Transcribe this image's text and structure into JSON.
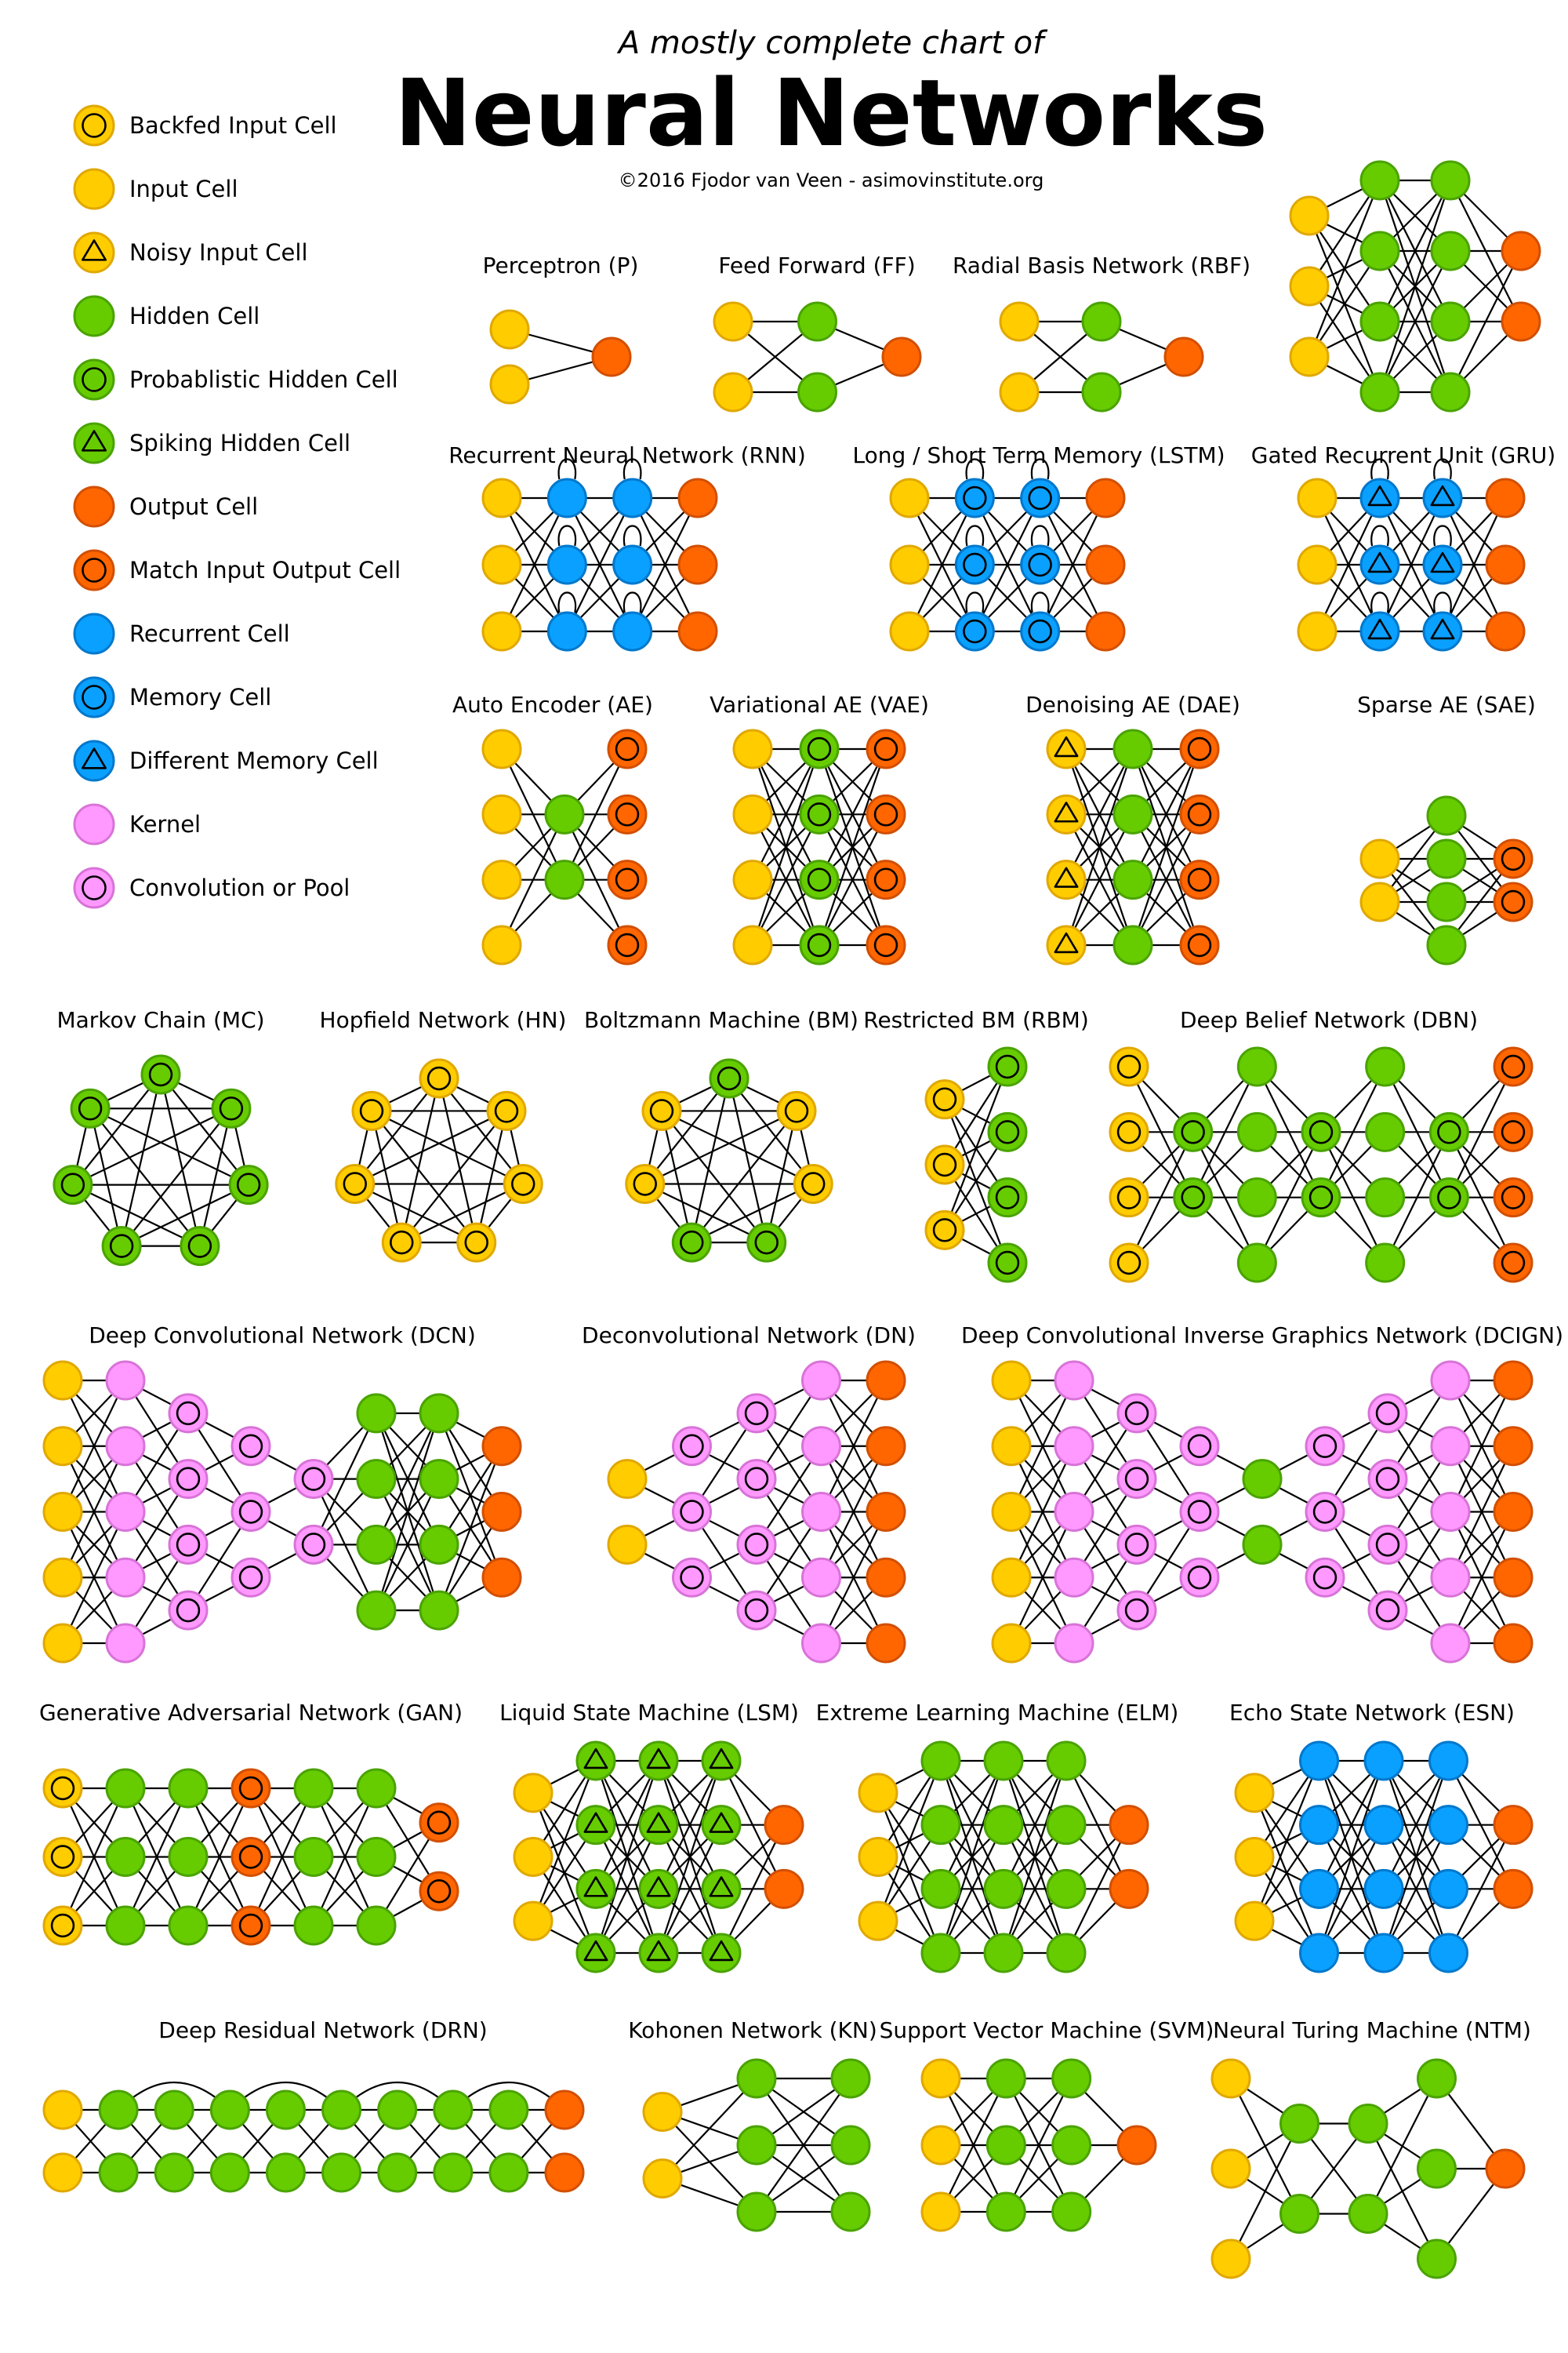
{
  "header": {
    "subtitle": "A mostly complete chart of",
    "title": "Neural Networks",
    "credit": "©2016 Fjodor van Veen - asimovinstitute.org"
  },
  "colors": {
    "yellow": "#ffcc00",
    "yellow_edge": "#e0a800",
    "green": "#66cc00",
    "green_edge": "#4aa300",
    "orange": "#ff6600",
    "orange_edge": "#d24f00",
    "blue": "#0aa0ff",
    "blue_edge": "#0078cc",
    "pink": "#ff99ff",
    "pink_edge": "#d873d8",
    "line": "#000000"
  },
  "legend": [
    {
      "key": "Y",
      "mark": "circle",
      "label": "Backfed Input Cell",
      "icon": "backfed-input-cell-icon"
    },
    {
      "key": "Y",
      "mark": "",
      "label": "Input Cell",
      "icon": "input-cell-icon"
    },
    {
      "key": "Y",
      "mark": "triangle",
      "label": "Noisy Input Cell",
      "icon": "noisy-input-cell-icon"
    },
    {
      "key": "G",
      "mark": "",
      "label": "Hidden Cell",
      "icon": "hidden-cell-icon"
    },
    {
      "key": "G",
      "mark": "circle",
      "label": "Probablistic Hidden Cell",
      "icon": "probabilistic-hidden-cell-icon"
    },
    {
      "key": "G",
      "mark": "triangle",
      "label": "Spiking Hidden Cell",
      "icon": "spiking-hidden-cell-icon"
    },
    {
      "key": "O",
      "mark": "",
      "label": "Output Cell",
      "icon": "output-cell-icon"
    },
    {
      "key": "O",
      "mark": "circle",
      "label": "Match Input Output Cell",
      "icon": "match-input-output-cell-icon"
    },
    {
      "key": "B",
      "mark": "",
      "label": "Recurrent Cell",
      "icon": "recurrent-cell-icon"
    },
    {
      "key": "B",
      "mark": "circle",
      "label": "Memory Cell",
      "icon": "memory-cell-icon"
    },
    {
      "key": "B",
      "mark": "triangle",
      "label": "Different Memory Cell",
      "icon": "different-memory-cell-icon"
    },
    {
      "key": "P",
      "mark": "",
      "label": "Kernel",
      "icon": "kernel-icon"
    },
    {
      "key": "P",
      "mark": "circle",
      "label": "Convolution or Pool",
      "icon": "convolution-or-pool-icon"
    }
  ],
  "networks": [
    {
      "id": "p",
      "title": "Perceptron (P)",
      "layers": [
        "2Y",
        "O"
      ]
    },
    {
      "id": "ff",
      "title": "Feed Forward (FF)",
      "layers": [
        "2Y",
        "2G",
        "O"
      ]
    },
    {
      "id": "rbf",
      "title": "Radial Basis Network (RBF)",
      "layers": [
        "2Y",
        "2G",
        "O"
      ]
    },
    {
      "id": "dff",
      "title": "",
      "layers": [
        "3Y",
        "4G",
        "4G",
        "2O"
      ]
    },
    {
      "id": "rnn",
      "title": "Recurrent Neural Network (RNN)",
      "layers": [
        "3Y",
        "3B",
        "3B",
        "3O"
      ]
    },
    {
      "id": "lstm",
      "title": "Long / Short Term Memory (LSTM)",
      "layers": [
        "3Y",
        "3Bc",
        "3Bc",
        "3O"
      ]
    },
    {
      "id": "gru",
      "title": "Gated Recurrent Unit (GRU)",
      "layers": [
        "3Y",
        "3Bt",
        "3Bt",
        "3O"
      ]
    },
    {
      "id": "ae",
      "title": "Auto Encoder (AE)",
      "layers": [
        "4Y",
        "2G",
        "4Oc"
      ]
    },
    {
      "id": "vae",
      "title": "Variational AE (VAE)",
      "layers": [
        "4Y",
        "4Gc",
        "4Oc"
      ]
    },
    {
      "id": "dae",
      "title": "Denoising AE (DAE)",
      "layers": [
        "4Yt",
        "4G",
        "4Oc"
      ]
    },
    {
      "id": "sae",
      "title": "Sparse AE (SAE)",
      "layers": [
        "2Y",
        "4G",
        "2Oc"
      ]
    },
    {
      "id": "mc",
      "title": "Markov Chain (MC)",
      "ring": "Gc"
    },
    {
      "id": "hn",
      "title": "Hopfield Network (HN)",
      "ring": "Yc"
    },
    {
      "id": "bm",
      "title": "Boltzmann Machine (BM)",
      "ring": "mix"
    },
    {
      "id": "rbm",
      "title": "Restricted BM (RBM)",
      "layers": [
        "3Yc",
        "4Gc"
      ]
    },
    {
      "id": "dbn",
      "title": "Deep Belief Network (DBN)",
      "layers": [
        "4Yc",
        "2Gc",
        "4G",
        "2Gc",
        "4G",
        "2Gc",
        "4Oc"
      ]
    },
    {
      "id": "dcn",
      "title": "Deep Convolutional Network (DCN)",
      "layers": [
        "5Y",
        "5P",
        "4Pc",
        "3Pc",
        "2Pc",
        "4G",
        "4G",
        "3O"
      ]
    },
    {
      "id": "dn",
      "title": "Deconvolutional Network (DN)",
      "layers": [
        "2Y",
        "3Pc",
        "4Pc",
        "5P",
        "5O"
      ]
    },
    {
      "id": "dcign",
      "title": "Deep Convolutional Inverse Graphics Network (DCIGN)",
      "layers": [
        "5Y",
        "5P",
        "4Pc",
        "3Pc",
        "2G",
        "3Pc",
        "4Pc",
        "5P",
        "5O"
      ]
    },
    {
      "id": "gan",
      "title": "Generative Adversarial Network (GAN)",
      "layers": [
        "3Yc",
        "3G",
        "3G",
        "3Oc",
        "3G",
        "3G",
        "2Oc"
      ]
    },
    {
      "id": "lsm",
      "title": "Liquid State Machine (LSM)",
      "layers": [
        "3Y",
        "4Gt",
        "4Gt",
        "4Gt",
        "2O"
      ]
    },
    {
      "id": "elm",
      "title": "Extreme Learning Machine (ELM)",
      "layers": [
        "3Y",
        "4G",
        "4G",
        "4G",
        "2O"
      ]
    },
    {
      "id": "esn",
      "title": "Echo State Network (ESN)",
      "layers": [
        "3Y",
        "4B",
        "4B",
        "4B",
        "2O"
      ]
    },
    {
      "id": "drn",
      "title": "Deep Residual Network (DRN)",
      "layers": [
        "2Y",
        "2G",
        "2G",
        "2G",
        "2G",
        "2G",
        "2G",
        "2G",
        "2G",
        "2O"
      ]
    },
    {
      "id": "kn",
      "title": "Kohonen Network (KN)",
      "layers": [
        "2Y",
        "3G",
        "3G"
      ]
    },
    {
      "id": "svm",
      "title": "Support Vector Machine (SVM)",
      "layers": [
        "3Y",
        "3G",
        "3G",
        "O"
      ]
    },
    {
      "id": "ntm",
      "title": "Neural Turing Machine (NTM)",
      "layers": [
        "3Y",
        "2G",
        "2G",
        "3G",
        "O"
      ]
    }
  ]
}
